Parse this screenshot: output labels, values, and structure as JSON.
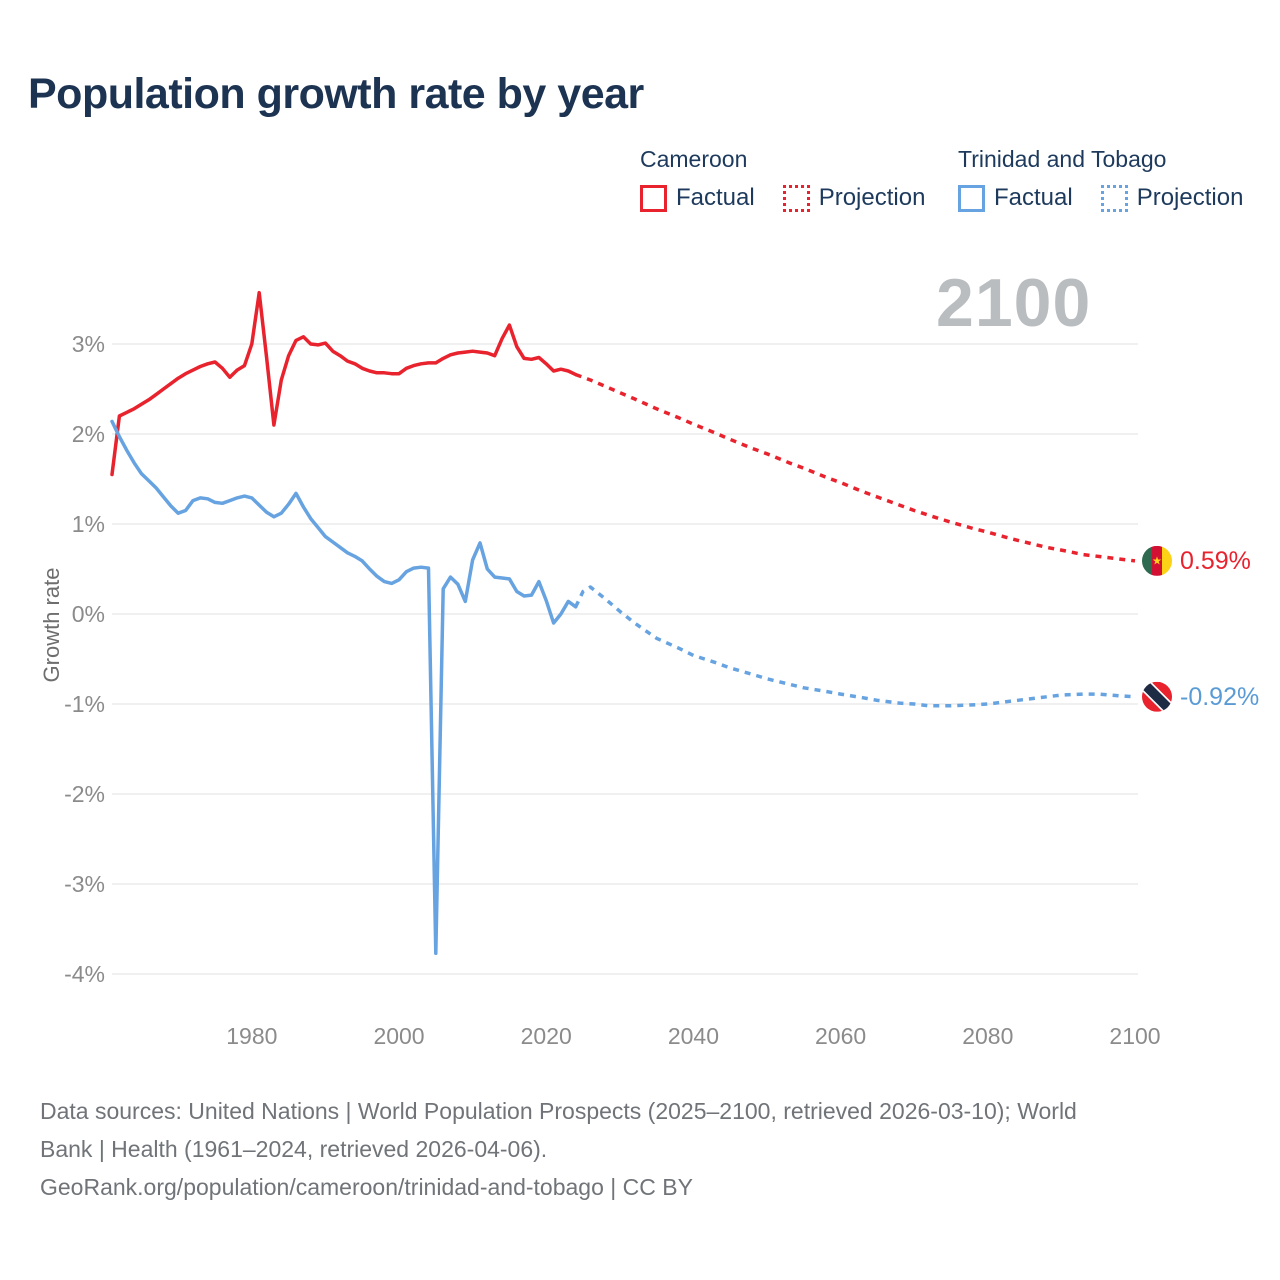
{
  "title": "Population growth rate by year",
  "watermark": "2100",
  "legend": {
    "groups": [
      {
        "name": "Cameroon",
        "color": "#e8232e",
        "items": [
          {
            "label": "Factual",
            "style": "solid"
          },
          {
            "label": "Projection",
            "style": "dotted"
          }
        ]
      },
      {
        "name": "Trinidad and Tobago",
        "color": "#67a3e0",
        "items": [
          {
            "label": "Factual",
            "style": "solid"
          },
          {
            "label": "Projection",
            "style": "dotted"
          }
        ]
      }
    ]
  },
  "axis": {
    "y_label": "Growth rate"
  },
  "source_lines": {
    "line1": "Data sources: United Nations | World Population Prospects (2025–2100, retrieved 2026-03-10); World",
    "line2": "Bank | Health (1961–2024, retrieved 2026-04-06).",
    "line3": "GeoRank.org/population/cameroon/trinidad-and-tobago | CC BY"
  },
  "chart_data": {
    "type": "line",
    "title": "Population growth rate by year",
    "xlabel": "",
    "ylabel": "Growth rate",
    "xlim": [
      1961,
      2100
    ],
    "ylim": [
      -4.3,
      3.9
    ],
    "grid": true,
    "legend_position": "top-right",
    "y_tick_values": [
      3,
      2,
      1,
      0,
      -1,
      -2,
      -3,
      -4
    ],
    "y_tick_labels": [
      "3%",
      "2%",
      "1%",
      "0%",
      "-1%",
      "-2%",
      "-3%",
      "-4%"
    ],
    "x_tick_values": [
      1980,
      2000,
      2020,
      2040,
      2060,
      2080,
      2100
    ],
    "x_tick_labels": [
      "1980",
      "2000",
      "2020",
      "2040",
      "2060",
      "2080",
      "2100"
    ],
    "series": [
      {
        "name": "Cameroon Factual",
        "country": "Cameroon",
        "kind": "factual",
        "color": "#e8232e",
        "dash": "none",
        "x": [
          1961,
          1962,
          1963,
          1964,
          1965,
          1966,
          1967,
          1968,
          1969,
          1970,
          1971,
          1972,
          1973,
          1974,
          1975,
          1976,
          1977,
          1978,
          1979,
          1980,
          1981,
          1982,
          1983,
          1984,
          1985,
          1986,
          1987,
          1988,
          1989,
          1990,
          1991,
          1992,
          1993,
          1994,
          1995,
          1996,
          1997,
          1998,
          1999,
          2000,
          2001,
          2002,
          2003,
          2004,
          2005,
          2006,
          2007,
          2008,
          2009,
          2010,
          2011,
          2012,
          2013,
          2014,
          2015,
          2016,
          2017,
          2018,
          2019,
          2020,
          2021,
          2022,
          2023,
          2024
        ],
        "values": [
          1.55,
          2.2,
          2.24,
          2.28,
          2.33,
          2.38,
          2.44,
          2.5,
          2.56,
          2.62,
          2.67,
          2.71,
          2.75,
          2.78,
          2.8,
          2.73,
          2.63,
          2.71,
          2.76,
          3.0,
          3.57,
          2.85,
          2.1,
          2.6,
          2.87,
          3.04,
          3.08,
          3.0,
          2.99,
          3.01,
          2.92,
          2.87,
          2.81,
          2.78,
          2.73,
          2.7,
          2.68,
          2.68,
          2.67,
          2.67,
          2.73,
          2.76,
          2.78,
          2.79,
          2.79,
          2.84,
          2.88,
          2.9,
          2.91,
          2.92,
          2.91,
          2.9,
          2.87,
          3.06,
          3.21,
          2.97,
          2.84,
          2.83,
          2.85,
          2.78,
          2.7,
          2.72,
          2.7,
          2.66
        ]
      },
      {
        "name": "Cameroon Projection",
        "country": "Cameroon",
        "kind": "projection",
        "color": "#e8232e",
        "dash": "6 6",
        "x": [
          2024,
          2026,
          2028,
          2030,
          2032,
          2035,
          2038,
          2040,
          2043,
          2045,
          2048,
          2050,
          2053,
          2055,
          2058,
          2060,
          2063,
          2065,
          2068,
          2070,
          2073,
          2075,
          2078,
          2080,
          2083,
          2085,
          2088,
          2090,
          2093,
          2095,
          2098,
          2100
        ],
        "values": [
          2.66,
          2.6,
          2.53,
          2.46,
          2.39,
          2.28,
          2.18,
          2.11,
          2.01,
          1.94,
          1.84,
          1.78,
          1.68,
          1.62,
          1.52,
          1.46,
          1.36,
          1.3,
          1.21,
          1.15,
          1.07,
          1.02,
          0.95,
          0.91,
          0.84,
          0.8,
          0.74,
          0.71,
          0.66,
          0.64,
          0.61,
          0.59
        ]
      },
      {
        "name": "Trinidad and Tobago Factual",
        "country": "Trinidad and Tobago",
        "kind": "factual",
        "color": "#67a3e0",
        "dash": "none",
        "x": [
          1961,
          1962,
          1963,
          1964,
          1965,
          1966,
          1967,
          1968,
          1969,
          1970,
          1971,
          1972,
          1973,
          1974,
          1975,
          1976,
          1977,
          1978,
          1979,
          1980,
          1981,
          1982,
          1983,
          1984,
          1985,
          1986,
          1987,
          1988,
          1989,
          1990,
          1991,
          1992,
          1993,
          1994,
          1995,
          1996,
          1997,
          1998,
          1999,
          2000,
          2001,
          2002,
          2003,
          2004,
          2005,
          2006,
          2007,
          2008,
          2009,
          2010,
          2011,
          2012,
          2013,
          2014,
          2015,
          2016,
          2017,
          2018,
          2019,
          2020,
          2021,
          2022,
          2023,
          2024
        ],
        "values": [
          2.14,
          1.97,
          1.82,
          1.68,
          1.56,
          1.48,
          1.4,
          1.3,
          1.2,
          1.12,
          1.15,
          1.26,
          1.29,
          1.28,
          1.24,
          1.23,
          1.26,
          1.29,
          1.31,
          1.29,
          1.21,
          1.13,
          1.08,
          1.12,
          1.22,
          1.34,
          1.19,
          1.06,
          0.96,
          0.86,
          0.8,
          0.74,
          0.68,
          0.64,
          0.59,
          0.5,
          0.42,
          0.36,
          0.34,
          0.38,
          0.47,
          0.51,
          0.52,
          0.51,
          -3.77,
          0.28,
          0.41,
          0.33,
          0.14,
          0.6,
          0.79,
          0.5,
          0.41,
          0.4,
          0.39,
          0.25,
          0.2,
          0.21,
          0.36,
          0.15,
          -0.1,
          0.0,
          0.14,
          0.08
        ]
      },
      {
        "name": "Trinidad and Tobago Projection",
        "country": "Trinidad and Tobago",
        "kind": "projection",
        "color": "#67a3e0",
        "dash": "6 6",
        "x": [
          2024,
          2025,
          2026,
          2028,
          2030,
          2032,
          2035,
          2038,
          2040,
          2043,
          2045,
          2048,
          2050,
          2053,
          2055,
          2058,
          2060,
          2063,
          2065,
          2068,
          2070,
          2072,
          2075,
          2078,
          2080,
          2082,
          2085,
          2088,
          2090,
          2093,
          2095,
          2098,
          2100
        ],
        "values": [
          0.08,
          0.25,
          0.3,
          0.17,
          0.03,
          -0.1,
          -0.27,
          -0.38,
          -0.46,
          -0.54,
          -0.6,
          -0.67,
          -0.72,
          -0.78,
          -0.82,
          -0.86,
          -0.89,
          -0.93,
          -0.96,
          -0.99,
          -1.0,
          -1.02,
          -1.02,
          -1.01,
          -1.0,
          -0.98,
          -0.95,
          -0.92,
          -0.9,
          -0.89,
          -0.89,
          -0.91,
          -0.92
        ]
      }
    ],
    "end_markers": [
      {
        "country": "Cameroon",
        "year": 2100,
        "value": 0.59,
        "label": "0.59%",
        "flag": "cameroon"
      },
      {
        "country": "Trinidad and Tobago",
        "year": 2100,
        "value": -0.92,
        "label": "-0.92%",
        "flag": "trinidad_tobago"
      }
    ]
  }
}
